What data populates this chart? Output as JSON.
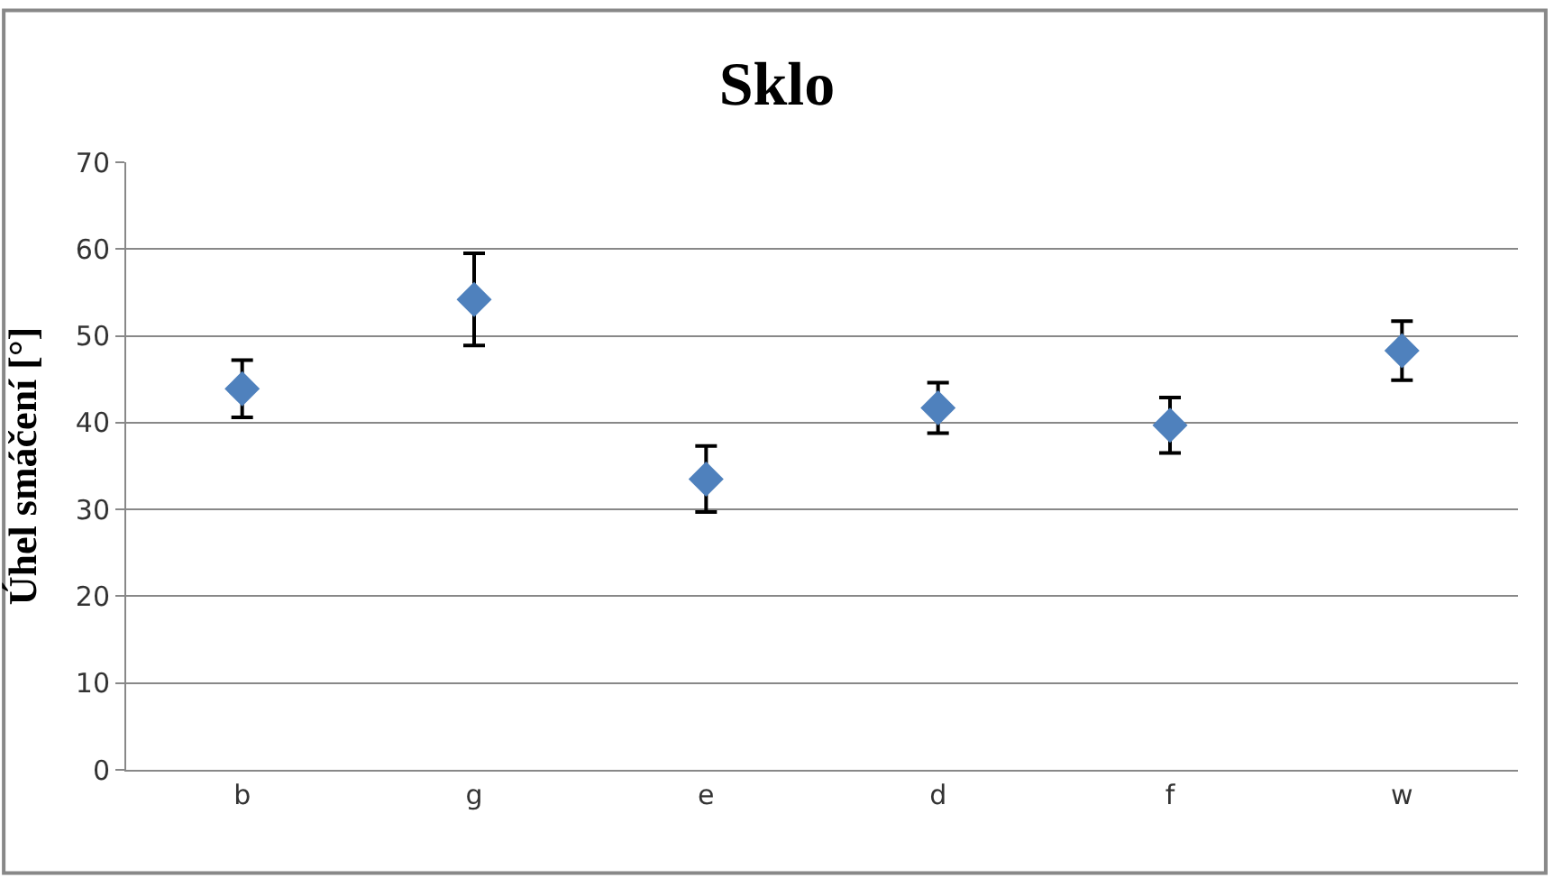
{
  "chart_data": {
    "type": "scatter",
    "title": "Sklo",
    "ylabel": "Úhel smáčení [°]",
    "categories": [
      "b",
      "g",
      "e",
      "d",
      "f",
      "w"
    ],
    "series": [
      {
        "color": "#4f81bd",
        "values": [
          43.9,
          54.2,
          33.5,
          41.7,
          39.7,
          48.3
        ],
        "errors": [
          3.3,
          5.3,
          3.8,
          2.9,
          3.2,
          3.4
        ]
      }
    ],
    "ylim": [
      0,
      70
    ],
    "yticks": [
      0,
      10,
      20,
      30,
      40,
      50,
      60,
      70
    ],
    "grid": "y",
    "marker": "diamond"
  }
}
